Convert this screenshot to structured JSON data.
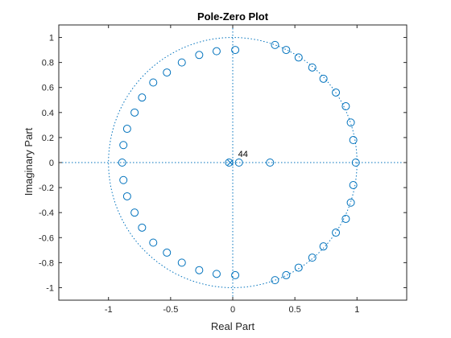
{
  "chart_data": {
    "type": "scatter",
    "title": "Pole-Zero Plot",
    "xlabel": "Real Part",
    "ylabel": "Imaginary Part",
    "xlim": [
      -1.4,
      1.4
    ],
    "ylim": [
      -1.1,
      1.1
    ],
    "xticks": [
      -1,
      -0.5,
      0,
      0.5,
      1
    ],
    "yticks": [
      -1,
      -0.8,
      -0.6,
      -0.4,
      -0.2,
      0,
      0.2,
      0.4,
      0.6,
      0.8,
      1
    ],
    "xtick_labels": [
      "-1",
      "-0.5",
      "0",
      "0.5",
      "1"
    ],
    "ytick_labels": [
      "-1",
      "-0.8",
      "-0.6",
      "-0.4",
      "-0.2",
      "0",
      "0.2",
      "0.4",
      "0.6",
      "0.8",
      "1"
    ],
    "grid": false,
    "unit_circle": true,
    "color": "#0072BD",
    "annotations": [
      {
        "text": "44",
        "x": 0.03,
        "y": 0.05
      }
    ],
    "poles": [
      {
        "x": -0.02,
        "y": 0.0,
        "multiplicity": 44
      }
    ],
    "zeros": [
      {
        "x": 0.99,
        "y": 0.0
      },
      {
        "x": 0.97,
        "y": 0.18
      },
      {
        "x": 0.95,
        "y": 0.32
      },
      {
        "x": 0.91,
        "y": 0.45
      },
      {
        "x": 0.83,
        "y": 0.56
      },
      {
        "x": 0.73,
        "y": 0.67
      },
      {
        "x": 0.64,
        "y": 0.76
      },
      {
        "x": 0.53,
        "y": 0.84
      },
      {
        "x": 0.43,
        "y": 0.9
      },
      {
        "x": 0.34,
        "y": 0.94
      },
      {
        "x": 0.97,
        "y": -0.18
      },
      {
        "x": 0.95,
        "y": -0.32
      },
      {
        "x": 0.91,
        "y": -0.45
      },
      {
        "x": 0.83,
        "y": -0.56
      },
      {
        "x": 0.73,
        "y": -0.67
      },
      {
        "x": 0.64,
        "y": -0.76
      },
      {
        "x": 0.53,
        "y": -0.84
      },
      {
        "x": 0.43,
        "y": -0.9
      },
      {
        "x": 0.34,
        "y": -0.94
      },
      {
        "x": 0.02,
        "y": 0.9
      },
      {
        "x": -0.13,
        "y": 0.89
      },
      {
        "x": -0.27,
        "y": 0.86
      },
      {
        "x": -0.41,
        "y": 0.8
      },
      {
        "x": -0.53,
        "y": 0.72
      },
      {
        "x": -0.64,
        "y": 0.64
      },
      {
        "x": -0.73,
        "y": 0.52
      },
      {
        "x": -0.79,
        "y": 0.4
      },
      {
        "x": -0.85,
        "y": 0.27
      },
      {
        "x": -0.88,
        "y": 0.14
      },
      {
        "x": -0.89,
        "y": 0.0
      },
      {
        "x": 0.02,
        "y": -0.9
      },
      {
        "x": -0.13,
        "y": -0.89
      },
      {
        "x": -0.27,
        "y": -0.86
      },
      {
        "x": -0.41,
        "y": -0.8
      },
      {
        "x": -0.53,
        "y": -0.72
      },
      {
        "x": -0.64,
        "y": -0.64
      },
      {
        "x": -0.73,
        "y": -0.52
      },
      {
        "x": -0.79,
        "y": -0.4
      },
      {
        "x": -0.85,
        "y": -0.27
      },
      {
        "x": -0.88,
        "y": -0.14
      },
      {
        "x": 0.3,
        "y": 0.0
      },
      {
        "x": 0.05,
        "y": 0.0
      },
      {
        "x": -0.03,
        "y": 0.0
      }
    ]
  }
}
